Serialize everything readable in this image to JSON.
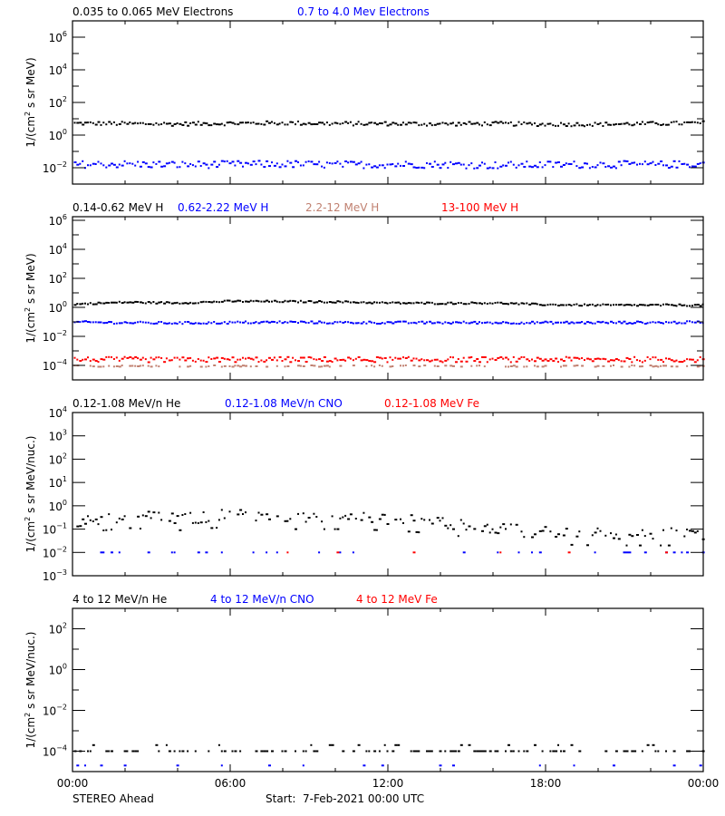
{
  "footer": {
    "spacecraft": "STEREO Ahead",
    "start_label": "Start:  7-Feb-2021 00:00 UTC"
  },
  "x_axis": {
    "tick_labels": [
      "00:00",
      "06:00",
      "12:00",
      "18:00",
      "00:00"
    ],
    "major_hours": [
      0,
      6,
      12,
      18,
      24
    ],
    "minor_hours": [
      2,
      4,
      8,
      10,
      14,
      16,
      20,
      22
    ]
  },
  "chart_data": [
    {
      "type": "scatter",
      "title": "Electrons",
      "ylabel": "1/(cm² s sr MeV)",
      "ylabel_parts": [
        "1/(cm",
        "2",
        " s sr MeV)"
      ],
      "yscale": "log",
      "ylim_log10": [
        -3,
        7
      ],
      "yticks_major_log10": [
        -2,
        0,
        2,
        4,
        6
      ],
      "yticks_minor_log10": [
        -1,
        1,
        3,
        5
      ],
      "ytick_labels": [
        "10^-2",
        "10^0",
        "10^2",
        "10^4",
        "10^6"
      ],
      "x_range_hours": [
        0,
        24
      ],
      "legend": [
        {
          "label": "0.035 to 0.065 MeV Electrons",
          "color": "#000000"
        },
        {
          "label": "0.7 to 4.0 Mev Electrons",
          "color": "#0000ff"
        }
      ],
      "series": [
        {
          "name": "0.035 to 0.065 MeV Electrons",
          "color": "#000000",
          "base_log10": 0.72,
          "jitter": 0.12,
          "drift": [
            0.72,
            0.7,
            0.68,
            0.72,
            0.74,
            0.7,
            0.7,
            0.68,
            0.7,
            0.66,
            0.66,
            0.7,
            0.74
          ],
          "sample_values": [
            5.2,
            5.0,
            4.8,
            5.3,
            5.5,
            5.0,
            5.1,
            4.8,
            5.0,
            4.6,
            4.6,
            5.0,
            5.5
          ]
        },
        {
          "name": "0.7 to 4.0 Mev Electrons",
          "color": "#0000ff",
          "base_log10": -1.8,
          "jitter": 0.22,
          "drift": [
            -1.8,
            -1.78,
            -1.82,
            -1.8,
            -1.78,
            -1.82,
            -1.8,
            -1.8,
            -1.85,
            -1.82,
            -1.8,
            -1.82,
            -1.78
          ],
          "sample_values": [
            0.016,
            0.017,
            0.015,
            0.016,
            0.017,
            0.015,
            0.016,
            0.016,
            0.014,
            0.015,
            0.016,
            0.015,
            0.017
          ]
        }
      ]
    },
    {
      "type": "scatter",
      "title": "Protons",
      "ylabel": "1/(cm² s sr MeV)",
      "ylabel_parts": [
        "1/(cm",
        "2",
        " s sr MeV)"
      ],
      "yscale": "log",
      "ylim_log10": [
        -5,
        6.25
      ],
      "yticks_major_log10": [
        -4,
        -2,
        0,
        2,
        4,
        6
      ],
      "yticks_minor_log10": [
        -5,
        -3,
        -1,
        1,
        3,
        5
      ],
      "ytick_labels": [
        "10^-4",
        "10^-2",
        "10^0",
        "10^2",
        "10^4",
        "10^6"
      ],
      "x_range_hours": [
        0,
        24
      ],
      "legend": [
        {
          "label": "0.14-0.62 MeV H",
          "color": "#000000"
        },
        {
          "label": "0.62-2.22 MeV H",
          "color": "#0000ff"
        },
        {
          "label": "2.2-12 MeV H",
          "color": "#c08070"
        },
        {
          "label": "13-100 MeV H",
          "color": "#ff0000"
        }
      ],
      "series": [
        {
          "name": "0.14-0.62 MeV H",
          "color": "#000000",
          "base_log10": 0.25,
          "jitter": 0.06,
          "drift": [
            0.22,
            0.35,
            0.3,
            0.42,
            0.4,
            0.38,
            0.3,
            0.28,
            0.3,
            0.18,
            0.15,
            0.15,
            0.15
          ],
          "sample_values": [
            1.7,
            2.2,
            2.0,
            2.6,
            2.5,
            2.4,
            2.0,
            1.9,
            2.0,
            1.5,
            1.4,
            1.4,
            1.4
          ]
        },
        {
          "name": "0.62-2.22 MeV H",
          "color": "#0000ff",
          "base_log10": -1.05,
          "jitter": 0.08,
          "drift": [
            -1.02,
            -1.06,
            -1.08,
            -1.05,
            -1.02,
            -1.05,
            -1.05,
            -1.06,
            -1.05,
            -1.06,
            -1.05,
            -1.05,
            -1.03
          ],
          "sample_values": [
            0.095,
            0.087,
            0.083,
            0.089,
            0.095,
            0.089,
            0.089,
            0.087,
            0.089,
            0.087,
            0.089,
            0.089,
            0.093
          ]
        },
        {
          "name": "2.2-12 MeV H",
          "color": "#c08070",
          "base_log10": -4.05,
          "jitter": 0.05,
          "drift": [
            -4.05,
            -4.05,
            -4.05,
            -4.05,
            -4.05,
            -4.05,
            -4.05,
            -4.05,
            -4.05,
            -4.05,
            -4.05,
            -4.05,
            -4.05
          ],
          "sample_values": [
            9e-05,
            9e-05,
            9e-05,
            9e-05,
            9e-05,
            9e-05,
            9e-05,
            9e-05,
            9e-05,
            9e-05,
            9e-05,
            9e-05,
            9e-05
          ],
          "sparse": 0.55
        },
        {
          "name": "13-100 MeV H",
          "color": "#ff0000",
          "base_log10": -3.6,
          "jitter": 0.18,
          "drift": [
            -3.6,
            -3.6,
            -3.62,
            -3.6,
            -3.6,
            -3.6,
            -3.6,
            -3.6,
            -3.6,
            -3.6,
            -3.6,
            -3.6,
            -3.6
          ],
          "sample_values": [
            0.00025,
            0.00025,
            0.00024,
            0.00025,
            0.00025,
            0.00025,
            0.00025,
            0.00025,
            0.00025,
            0.00025,
            0.00025,
            0.00025,
            0.00025
          ]
        }
      ]
    },
    {
      "type": "scatter",
      "title": "Low-energy heavy ions",
      "ylabel": "1/(cm² s sr MeV/nuc.)",
      "ylabel_parts": [
        "1/(cm",
        "2",
        " s sr MeV/nuc.)"
      ],
      "yscale": "log",
      "ylim_log10": [
        -3,
        4
      ],
      "yticks_major_log10": [
        -3,
        -2,
        -1,
        0,
        1,
        2,
        3,
        4
      ],
      "yticks_minor_log10": [],
      "ytick_labels": [
        "10^-3",
        "10^-2",
        "10^-1",
        "10^0",
        "10^1",
        "10^2",
        "10^3",
        "10^4"
      ],
      "x_range_hours": [
        0,
        24
      ],
      "legend": [
        {
          "label": "0.12-1.08 MeV/n He",
          "color": "#000000"
        },
        {
          "label": "0.12-1.08 MeV/n CNO",
          "color": "#0000ff"
        },
        {
          "label": "0.12-1.08 MeV Fe",
          "color": "#ff0000"
        }
      ],
      "series": [
        {
          "name": "0.12-1.08 MeV/n He",
          "color": "#000000",
          "base_log10": -0.6,
          "jitter": 0.25,
          "drift": [
            -0.7,
            -0.45,
            -0.55,
            -0.4,
            -0.5,
            -0.5,
            -0.55,
            -0.7,
            -1.0,
            -1.15,
            -1.2,
            -1.2,
            -1.2
          ],
          "sparse": 0.35,
          "sample_values": [
            0.2,
            0.35,
            0.28,
            0.4,
            0.32,
            0.32,
            0.28,
            0.2,
            0.1,
            0.07,
            0.06,
            0.06,
            0.06
          ]
        },
        {
          "name": "0.12-1.08 MeV/n CNO",
          "color": "#0000ff",
          "base_log10": -2.0,
          "jitter": 0.0,
          "drift": [
            -2,
            -2,
            -2,
            -2,
            -2,
            -2,
            -2,
            -2,
            -2,
            -2,
            -2,
            -2,
            -2
          ],
          "sparse": 0.88,
          "sample_values": [
            0.01,
            0.01,
            0.01,
            0.01,
            0.01,
            0.01,
            0.01,
            0.01,
            0.01,
            0.01,
            0.01,
            0.01,
            0.01
          ]
        },
        {
          "name": "0.12-1.08 MeV Fe",
          "color": "#ff0000",
          "base_log10": -2.0,
          "jitter": 0.0,
          "drift": [
            -2,
            -2,
            -2,
            -2,
            -2,
            -2,
            -2,
            -2,
            -2,
            -2,
            -2,
            -2,
            -2
          ],
          "sparse": 0.97,
          "sample_values": [
            0.01,
            0.01,
            0.01,
            0.01,
            0.01,
            0.01,
            0.01,
            0.01,
            0.01,
            0.01,
            0.01,
            0.01,
            0.01
          ]
        }
      ]
    },
    {
      "type": "scatter",
      "title": "High-energy heavy ions",
      "ylabel": "1/(cm² s sr MeV/nuc.)",
      "ylabel_parts": [
        "1/(cm",
        "2",
        " s sr MeV/nuc.)"
      ],
      "yscale": "log",
      "ylim_log10": [
        -5,
        3
      ],
      "yticks_major_log10": [
        -4,
        -2,
        0,
        2
      ],
      "yticks_minor_log10": [
        -3,
        -1,
        1
      ],
      "ytick_labels": [
        "10^-4",
        "10^-2",
        "10^0",
        "10^2"
      ],
      "x_range_hours": [
        0,
        24
      ],
      "legend": [
        {
          "label": "4 to 12 MeV/n He",
          "color": "#000000"
        },
        {
          "label": "4 to 12 MeV/n CNO",
          "color": "#0000ff"
        },
        {
          "label": "4 to 12 MeV Fe",
          "color": "#ff0000"
        }
      ],
      "series": [
        {
          "name": "4 to 12 MeV/n He",
          "color": "#000000",
          "base_log10": -4.0,
          "jitter": 0.0,
          "drift": [
            -4,
            -4,
            -4,
            -4,
            -4,
            -4,
            -4,
            -4,
            -4,
            -4,
            -4,
            -4,
            -4
          ],
          "sparse": 0.5,
          "upper_step": -3.7,
          "sample_values": [
            0.0001,
            0.0001,
            0.0001,
            0.0001,
            0.0001,
            0.0001,
            0.0001,
            0.0001,
            0.0001,
            0.0001,
            0.0001,
            0.0001,
            0.0001
          ]
        },
        {
          "name": "4 to 12 MeV/n CNO",
          "color": "#0000ff",
          "base_log10": -4.7,
          "jitter": 0.0,
          "drift": [
            -4.7,
            -4.7,
            -4.7,
            -4.7,
            -4.7,
            -4.7,
            -4.7,
            -4.7,
            -4.7,
            -4.7,
            -4.7,
            -4.7,
            -4.7
          ],
          "sparse": 0.95,
          "sample_values": [
            2e-05,
            2e-05,
            2e-05,
            2e-05,
            2e-05,
            2e-05,
            2e-05,
            2e-05,
            2e-05,
            2e-05,
            2e-05,
            2e-05,
            2e-05
          ]
        },
        {
          "name": "4 to 12 MeV Fe",
          "color": "#ff0000",
          "base_log10": -4.7,
          "jitter": 0.0,
          "drift": [
            -4.7,
            -4.7,
            -4.7,
            -4.7,
            -4.7,
            -4.7,
            -4.7,
            -4.7,
            -4.7,
            -4.7,
            -4.7,
            -4.7,
            -4.7
          ],
          "sparse": 0.995,
          "sample_values": [
            2e-05,
            2e-05,
            2e-05,
            2e-05,
            2e-05,
            2e-05,
            2e-05,
            2e-05,
            2e-05,
            2e-05,
            2e-05,
            2e-05,
            2e-05
          ]
        }
      ]
    }
  ]
}
